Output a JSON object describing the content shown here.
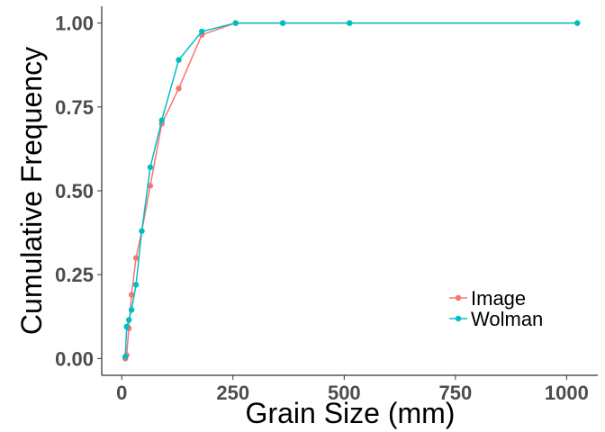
{
  "chart_data": {
    "type": "line",
    "xlabel": "Grain Size (mm)",
    "ylabel": "Cumulative Frequency",
    "xlim": [
      -45,
      1070
    ],
    "ylim": [
      -0.05,
      1.05
    ],
    "xticks": [
      0,
      250,
      500,
      750,
      1000
    ],
    "xtick_labels": [
      "0",
      "250",
      "500",
      "750",
      "1000"
    ],
    "yticks": [
      0,
      0.25,
      0.5,
      0.75,
      1.0
    ],
    "ytick_labels": [
      "0.00",
      "0.25",
      "0.50",
      "0.75",
      "1.00"
    ],
    "grid": false,
    "legend_position": "bottom-right",
    "series": [
      {
        "name": "Image",
        "color": "#F8766D",
        "x": [
          8,
          11,
          16,
          22,
          32,
          45,
          64,
          90,
          128,
          180,
          256,
          362,
          512,
          1024
        ],
        "y": [
          0.0,
          0.01,
          0.09,
          0.19,
          0.3,
          0.38,
          0.515,
          0.7,
          0.805,
          0.965,
          1.0,
          1.0,
          1.0,
          1.0
        ]
      },
      {
        "name": "Wolman",
        "color": "#00BFC4",
        "x": [
          8,
          11,
          16,
          22,
          32,
          45,
          64,
          90,
          128,
          180,
          256,
          362,
          512,
          1024
        ],
        "y": [
          0.005,
          0.095,
          0.115,
          0.145,
          0.22,
          0.38,
          0.57,
          0.71,
          0.89,
          0.975,
          1.0,
          1.0,
          1.0,
          1.0
        ]
      }
    ]
  }
}
